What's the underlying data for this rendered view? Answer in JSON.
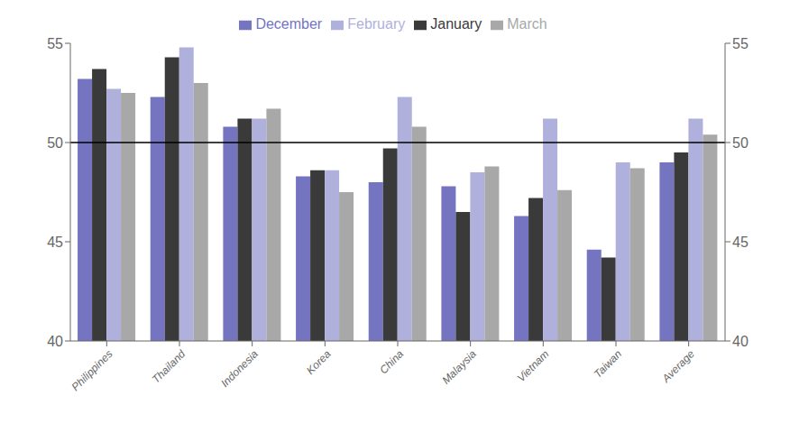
{
  "chart_data": {
    "type": "bar",
    "categories": [
      "Philippines",
      "Thailand",
      "Indonesia",
      "Korea",
      "China",
      "Malaysia",
      "Vietnam",
      "Taiwan",
      "Average"
    ],
    "series": [
      {
        "name": "December",
        "color": "#7474c1",
        "values": [
          53.2,
          52.3,
          50.8,
          48.3,
          48.0,
          47.8,
          46.3,
          44.6,
          49.0
        ]
      },
      {
        "name": "January",
        "color": "#3a3a3a",
        "values": [
          53.7,
          54.3,
          51.2,
          48.6,
          49.7,
          46.5,
          47.2,
          44.2,
          49.5
        ]
      },
      {
        "name": "February",
        "color": "#b0b0dd",
        "values": [
          52.7,
          54.8,
          51.2,
          48.6,
          52.3,
          48.5,
          51.2,
          49.0,
          51.2
        ]
      },
      {
        "name": "March",
        "color": "#a8a8a8",
        "values": [
          52.5,
          53.0,
          51.7,
          47.5,
          50.8,
          48.8,
          47.6,
          48.7,
          50.4
        ]
      }
    ],
    "ylim": [
      40,
      55
    ],
    "yticks": [
      40,
      45,
      50,
      55
    ],
    "y2lim": [
      40,
      55
    ],
    "y2ticks": [
      40,
      45,
      50,
      55
    ],
    "hline": 50,
    "grid": false,
    "legend": "top"
  }
}
